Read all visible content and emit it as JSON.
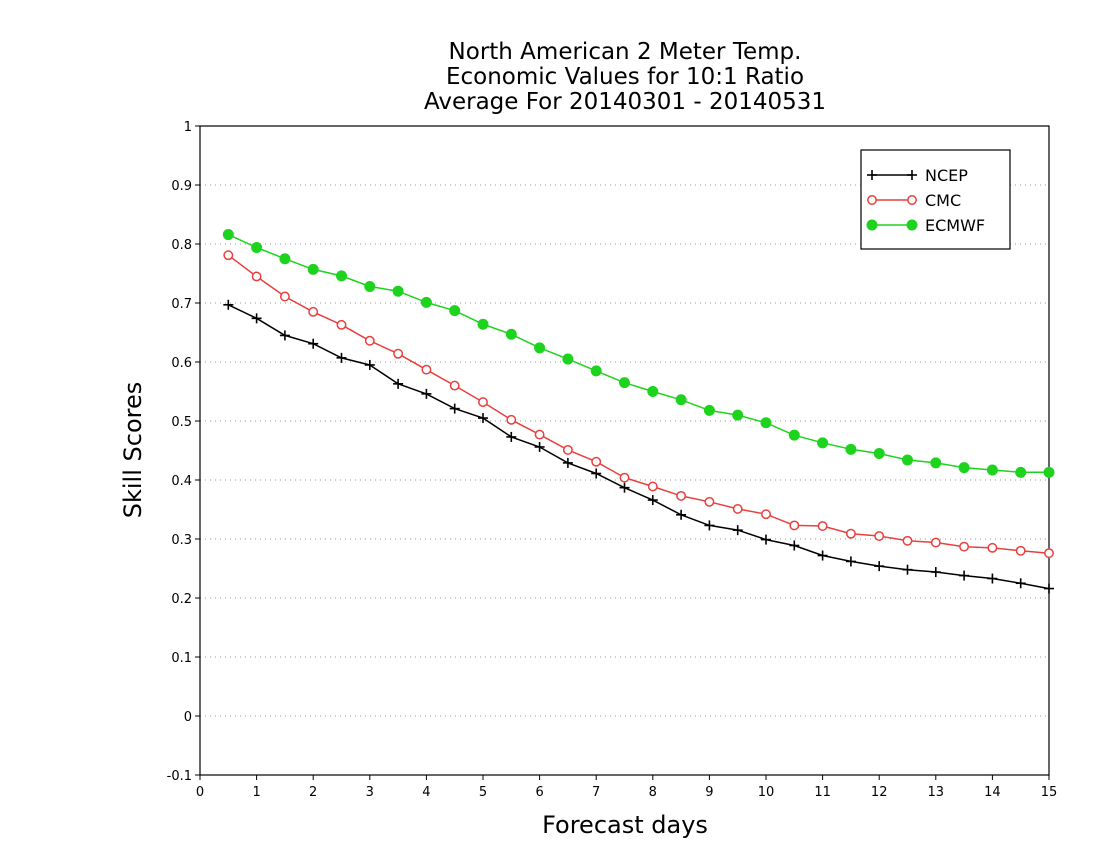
{
  "chart_data": {
    "type": "line",
    "title": [
      "North American 2 Meter Temp.",
      "Economic Values for 10:1 Ratio",
      "Average For 20140301 - 20140531"
    ],
    "xlabel": "Forecast days",
    "ylabel": "Skill Scores",
    "xlim": [
      0,
      15
    ],
    "ylim": [
      -0.1,
      1
    ],
    "xticks": [
      0,
      1,
      2,
      3,
      4,
      5,
      6,
      7,
      8,
      9,
      10,
      11,
      12,
      13,
      14,
      15
    ],
    "xtick_labels": [
      "0",
      "1",
      "2",
      "3",
      "4",
      "5",
      "6",
      "7",
      "8",
      "9",
      "10",
      "11",
      "12",
      "13",
      "14",
      "15"
    ],
    "yticks": [
      -0.1,
      0,
      0.1,
      0.2,
      0.3,
      0.4,
      0.5,
      0.6,
      0.7,
      0.8,
      0.9,
      1
    ],
    "ytick_labels": [
      "-0.1",
      "0",
      "0.1",
      "0.2",
      "0.3",
      "0.4",
      "0.5",
      "0.6",
      "0.7",
      "0.8",
      "0.9",
      "1"
    ],
    "grid": "horizontal dotted",
    "legend_position": "top-right",
    "x": [
      0.5,
      1,
      1.5,
      2,
      2.5,
      3,
      3.5,
      4,
      4.5,
      5,
      5.5,
      6,
      6.5,
      7,
      7.5,
      8,
      8.5,
      9,
      9.5,
      10,
      10.5,
      11,
      11.5,
      12,
      12.5,
      13,
      13.5,
      14,
      14.5,
      15
    ],
    "series": [
      {
        "name": "NCEP",
        "color": "#000000",
        "marker": "plus",
        "values": [
          0.697,
          0.674,
          0.645,
          0.631,
          0.607,
          0.595,
          0.563,
          0.546,
          0.521,
          0.505,
          0.473,
          0.456,
          0.429,
          0.411,
          0.387,
          0.366,
          0.341,
          0.323,
          0.315,
          0.299,
          0.289,
          0.272,
          0.262,
          0.254,
          0.248,
          0.244,
          0.238,
          0.233,
          0.225,
          0.216
        ]
      },
      {
        "name": "CMC",
        "color": "#e8403c",
        "marker": "open-circle",
        "values": [
          0.781,
          0.745,
          0.711,
          0.685,
          0.663,
          0.636,
          0.614,
          0.587,
          0.56,
          0.532,
          0.502,
          0.477,
          0.451,
          0.431,
          0.404,
          0.389,
          0.373,
          0.363,
          0.351,
          0.342,
          0.323,
          0.322,
          0.309,
          0.305,
          0.297,
          0.294,
          0.287,
          0.285,
          0.28,
          0.276
        ]
      },
      {
        "name": "ECMWF",
        "color": "#1ed31e",
        "marker": "filled-circle",
        "values": [
          0.816,
          0.794,
          0.775,
          0.757,
          0.746,
          0.728,
          0.72,
          0.701,
          0.687,
          0.664,
          0.647,
          0.624,
          0.605,
          0.585,
          0.565,
          0.55,
          0.536,
          0.518,
          0.51,
          0.497,
          0.476,
          0.463,
          0.452,
          0.445,
          0.434,
          0.429,
          0.421,
          0.417,
          0.413,
          0.413
        ]
      }
    ]
  }
}
